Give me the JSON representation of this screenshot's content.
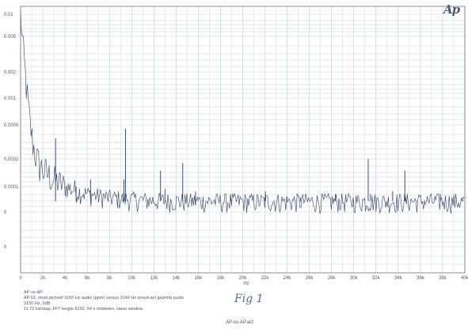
{
  "logo": "Ap",
  "chart_data": {
    "type": "line",
    "title": "",
    "xlabel": "Hz",
    "ylabel": "",
    "xlim": [
      0,
      40000
    ],
    "ylim": [
      0,
      0.01
    ],
    "x_ticks": [
      0,
      2000,
      4000,
      6000,
      8000,
      10000,
      12000,
      14000,
      16000,
      18000,
      20000,
      22000,
      24000,
      26000,
      28000,
      30000,
      32000,
      34000,
      36000,
      38000,
      40000
    ],
    "x_tick_labels": [
      "0",
      "2k",
      "4k",
      "6k",
      "8k",
      "10k",
      "12k",
      "14k",
      "16k",
      "18k",
      "20k",
      "22k",
      "24k",
      "26k",
      "28k",
      "30k",
      "32k",
      "34k",
      "36k",
      "38k",
      "40k"
    ],
    "y_tick_labels": [
      "0.01",
      "0.005",
      "0.002",
      "0.001",
      "0.0005",
      "0.0002",
      "0.0001",
      "0",
      "0"
    ],
    "grid": true,
    "series": [
      {
        "noise_floor": 5e-05,
        "low_freq_peak": 0.0085,
        "spurs": [
          {
            "x": 3150,
            "y": 0.00035
          },
          {
            "x": 6300,
            "y": 0.00012
          },
          {
            "x": 9450,
            "y": 0.00045
          },
          {
            "x": 12600,
            "y": 0.00015
          },
          {
            "x": 15750,
            "y": 8e-05
          },
          {
            "x": 18900,
            "y": 7e-05
          },
          {
            "x": 22050,
            "y": 8e-05
          },
          {
            "x": 25200,
            "y": 6e-05
          },
          {
            "x": 28350,
            "y": 7e-05
          },
          {
            "x": 31500,
            "y": 7e-05
          },
          {
            "x": 34650,
            "y": 6e-05
          },
          {
            "x": 37800,
            "y": 7e-05
          },
          {
            "x": 5000,
            "y": 0.0001
          },
          {
            "x": 9300,
            "y": 0.00012
          },
          {
            "x": 13000,
            "y": 9e-05
          },
          {
            "x": 14600,
            "y": 0.00018
          },
          {
            "x": 22000,
            "y": 6e-05
          },
          {
            "x": 31300,
            "y": 0.0002
          },
          {
            "x": 33500,
            "y": 8e-05
          },
          {
            "x": 34600,
            "y": 0.00015
          }
        ]
      }
    ]
  },
  "notes": [
    "AP-xx-AP",
    "AP 02, moet pichoef 3150 Hz audio (ppm) versus 3149 Hz (noud-ael geprint) audio",
    "3150 Hz, 0dB",
    "11.72 Hz/stap, FFT lengte 8192, 64 x middelen, Hann window"
  ],
  "signature": "Fig 1",
  "footer": "AP-xx-AP.at2"
}
